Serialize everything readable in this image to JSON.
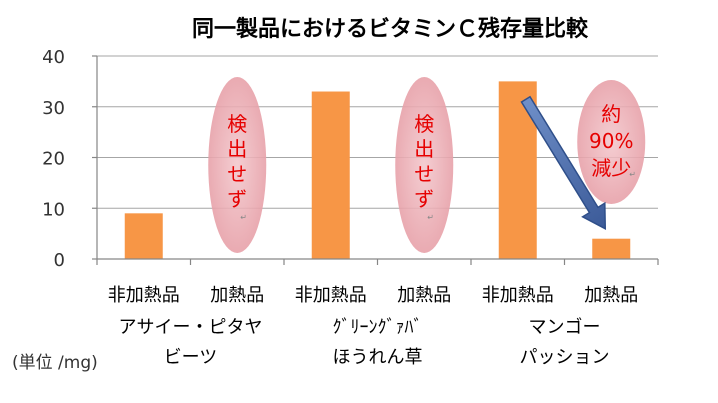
{
  "chart_data": {
    "type": "bar",
    "title": "同一製品におけるビタミンＣ残存量比較",
    "unit_label": "(単位 /mg)",
    "ylim": [
      0,
      40
    ],
    "yticks": [
      "0",
      "10",
      "20",
      "30",
      "40"
    ],
    "categories": [
      "非加熱品",
      "加熱品",
      "非加熱品",
      "加熱品",
      "非加熱品",
      "加熱品"
    ],
    "values": [
      9,
      0,
      33,
      0,
      35,
      4
    ],
    "groups": [
      {
        "lines": [
          "アサイー・ピタヤ",
          "ビーツ"
        ]
      },
      {
        "lines": [
          "ｸﾞﾘｰﾝｸﾞｧﾊﾞ",
          "ほうれん草"
        ]
      },
      {
        "lines": [
          "マンゴー",
          "パッション"
        ]
      }
    ],
    "annotations": [
      {
        "text": [
          "検",
          "出",
          "せ",
          "ず"
        ],
        "category_index": 1
      },
      {
        "text": [
          "検",
          "出",
          "せ",
          "ず"
        ],
        "category_index": 3
      },
      {
        "text": [
          "約",
          "90%",
          "減少"
        ],
        "category_index": 5
      }
    ],
    "colors": {
      "bar": "#f79646",
      "axis": "#868686",
      "grid": "#a6a6a6",
      "ellipse": "#e8a0a8",
      "note": "#e60000",
      "arrow": "#4a6ca8"
    },
    "grid": true
  }
}
